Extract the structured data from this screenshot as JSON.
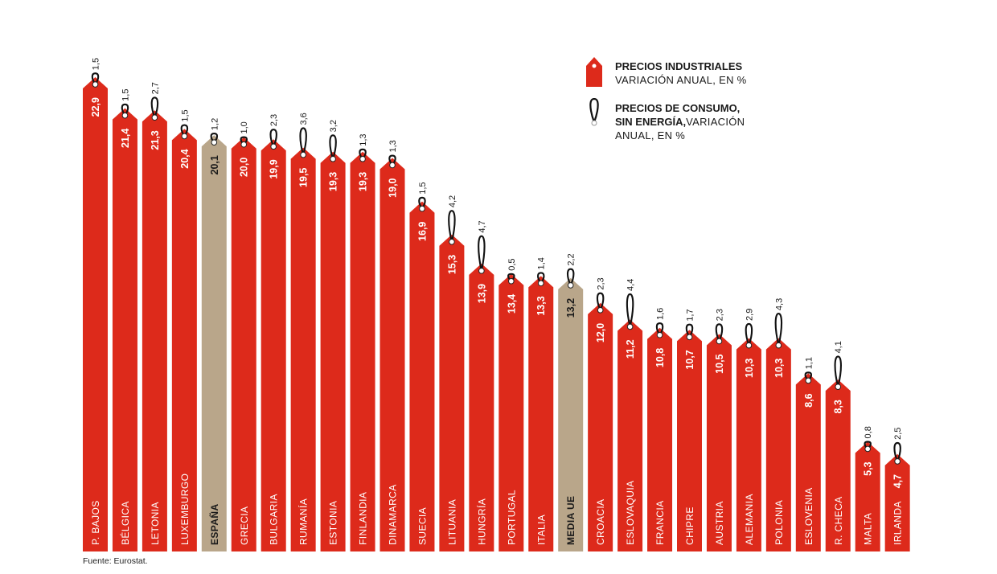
{
  "source": "Fuente: Eurostat.",
  "legend": {
    "industrial_line1": "PRECIOS INDUSTRIALES",
    "industrial_line2": "VARIACIÓN ANUAL, EN %",
    "consumer_line1": "PRECIOS DE CONSUMO,",
    "consumer_line2_bold": "SIN ENERGÍA,",
    "consumer_line2_rest": "VARIACIÓN",
    "consumer_line3": "ANUAL, EN %"
  },
  "colors": {
    "industrial": "#dd2a1b",
    "highlight": "#b9a68a",
    "tag_text": "#ffffff",
    "highlight_text": "#1a1a1a",
    "loop": "#111111"
  },
  "chart_data": {
    "type": "bar",
    "title": "",
    "xlabel": "",
    "ylabel": "",
    "ylim": [
      0,
      25
    ],
    "categories": [
      "P. BAJOS",
      "BÉLGICA",
      "LETONIA",
      "LUXEMBURGO",
      "ESPAÑA",
      "GRECIA",
      "BULGARIA",
      "RUMANÍA",
      "ESTONIA",
      "FINLANDIA",
      "DINAMARCA",
      "SUECIA",
      "LITUANIA",
      "HUNGRÍA",
      "PORTUGAL",
      "ITALIA",
      "MEDIA UE",
      "CROACIA",
      "ESLOVAQUIA",
      "FRANCIA",
      "CHIPRE",
      "AUSTRIA",
      "ALEMANIA",
      "POLONIA",
      "ESLOVENIA",
      "R. CHECA",
      "MALTA",
      "IRLANDA"
    ],
    "highlighted": [
      "ESPAÑA",
      "MEDIA UE"
    ],
    "series": [
      {
        "name": "PRECIOS INDUSTRIALES, VARIACIÓN ANUAL, EN %",
        "values": [
          22.9,
          21.4,
          21.3,
          20.4,
          20.1,
          20.0,
          19.9,
          19.5,
          19.3,
          19.3,
          19.0,
          16.9,
          15.3,
          13.9,
          13.4,
          13.3,
          13.2,
          12.0,
          11.2,
          10.8,
          10.7,
          10.5,
          10.3,
          10.3,
          8.6,
          8.3,
          5.3,
          4.7
        ],
        "labels": [
          "22,9",
          "21,4",
          "21,3",
          "20,4",
          "20,1",
          "20,0",
          "19,9",
          "19,5",
          "19,3",
          "19,3",
          "19,0",
          "16,9",
          "15,3",
          "13,9",
          "13,4",
          "13,3",
          "13,2",
          "12,0",
          "11,2",
          "10,8",
          "10,7",
          "10,5",
          "10,3",
          "10,3",
          "8,6",
          "8,3",
          "5,3",
          "4,7"
        ]
      },
      {
        "name": "PRECIOS DE CONSUMO, SIN ENERGÍA, VARIACIÓN ANUAL, EN %",
        "values": [
          1.5,
          1.5,
          2.7,
          1.5,
          1.2,
          1.0,
          2.3,
          3.6,
          3.2,
          1.3,
          1.3,
          1.5,
          4.2,
          4.7,
          0.5,
          1.4,
          2.2,
          2.3,
          4.4,
          1.6,
          1.7,
          2.3,
          2.9,
          4.3,
          1.1,
          4.1,
          0.8,
          2.5
        ],
        "labels": [
          "1,5",
          "1,5",
          "2,7",
          "1,5",
          "1,2",
          "1,0",
          "2,3",
          "3,6",
          "3,2",
          "1,3",
          "1,3",
          "1,5",
          "4,2",
          "4,7",
          "0,5",
          "1,4",
          "2,2",
          "2,3",
          "4,4",
          "1,6",
          "1,7",
          "2,3",
          "2,9",
          "4,3",
          "1,1",
          "4,1",
          "0,8",
          "2,5"
        ]
      }
    ]
  }
}
